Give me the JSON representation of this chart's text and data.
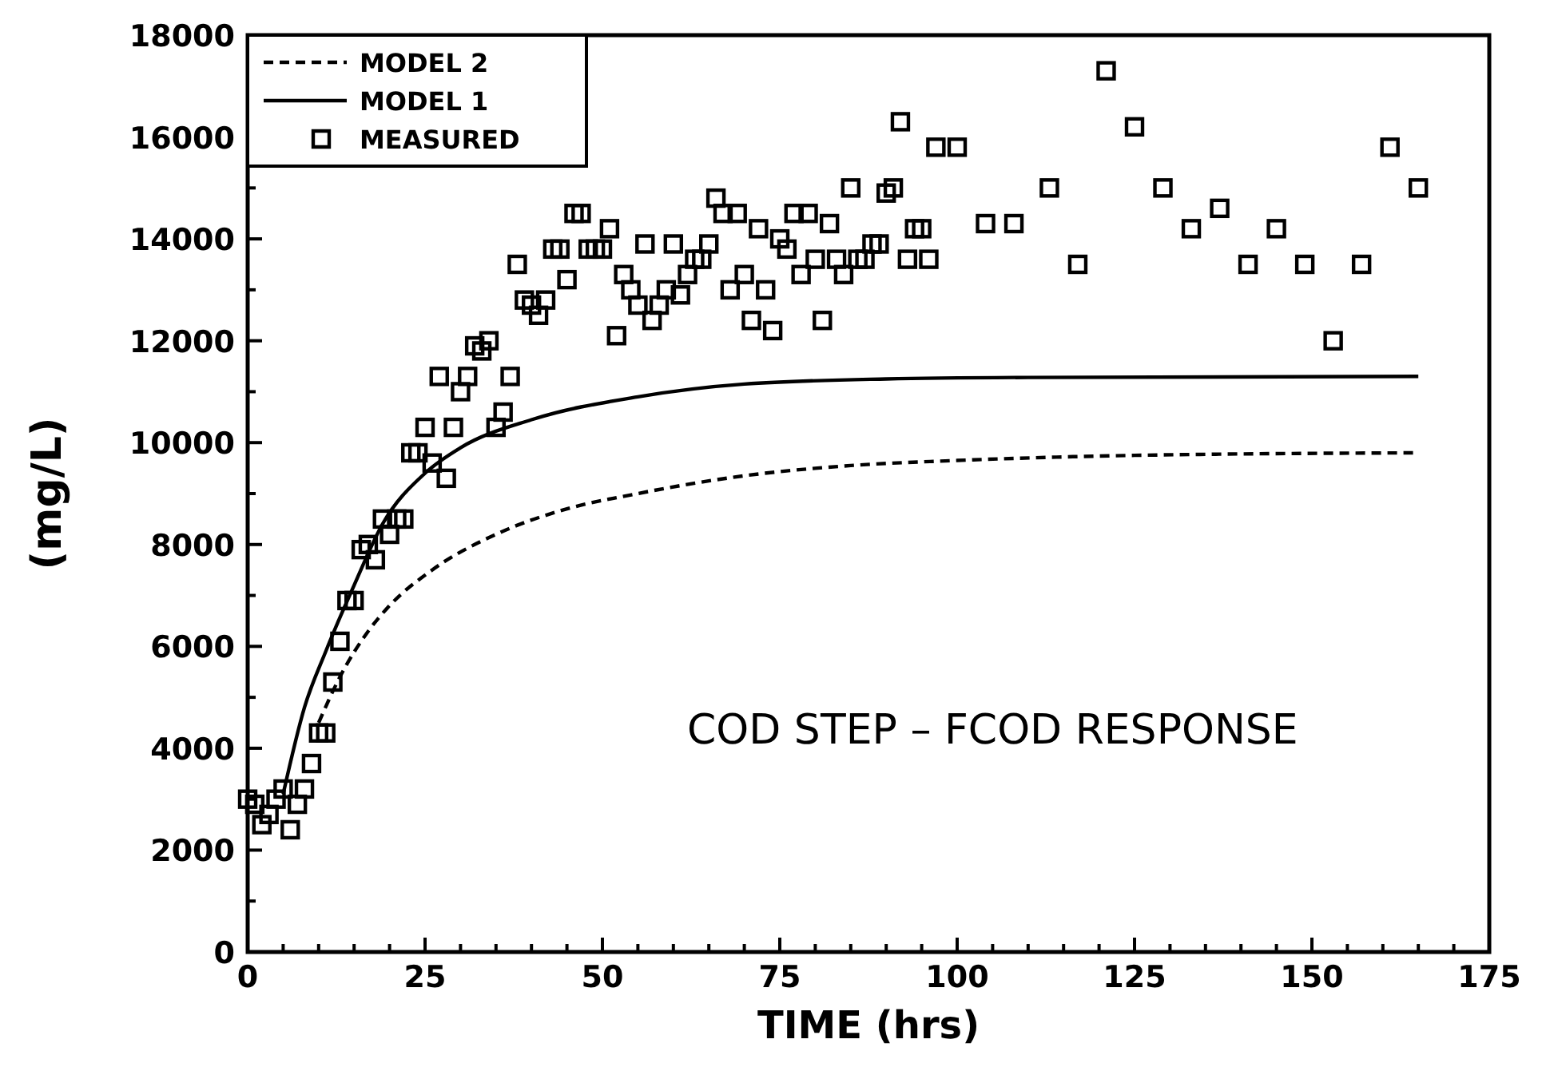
{
  "chart_data": {
    "type": "scatter",
    "xlabel": "TIME (hrs)",
    "ylabel": "(mg/L)",
    "annotations": [
      "COD STEP – FCOD RESPONSE"
    ],
    "xlim": [
      0,
      175
    ],
    "xticks": [
      0,
      {
        "value": 5,
        "label": null
      },
      {
        "value": 10,
        "label": null
      },
      {
        "value": 15,
        "label": null
      },
      {
        "value": 20,
        "label": null
      },
      25,
      {
        "value": 30,
        "label": null
      },
      {
        "value": 35,
        "label": null
      },
      {
        "value": 40,
        "label": null
      },
      {
        "value": 45,
        "label": null
      },
      50,
      {
        "value": 55,
        "label": null
      },
      {
        "value": 60,
        "label": null
      },
      {
        "value": 65,
        "label": null
      },
      {
        "value": 70,
        "label": null
      },
      75,
      {
        "value": 80,
        "label": null
      },
      {
        "value": 85,
        "label": null
      },
      {
        "value": 90,
        "label": null
      },
      {
        "value": 95,
        "label": null
      },
      100,
      {
        "value": 105,
        "label": null
      },
      {
        "value": 110,
        "label": null
      },
      {
        "value": 115,
        "label": null
      },
      {
        "value": 120,
        "label": null
      },
      125,
      {
        "value": 130,
        "label": null
      },
      {
        "value": 135,
        "label": null
      },
      {
        "value": 140,
        "label": null
      },
      {
        "value": 145,
        "label": null
      },
      150,
      {
        "value": 155,
        "label": null
      },
      {
        "value": 160,
        "label": null
      },
      {
        "value": 165,
        "label": null
      },
      {
        "value": 170,
        "label": null
      },
      175
    ],
    "ylim": [
      0,
      18000
    ],
    "yticks": [
      0,
      {
        "value": 1000,
        "label": null
      },
      2000,
      {
        "value": 3000,
        "label": null
      },
      4000,
      {
        "value": 5000,
        "label": null
      },
      6000,
      {
        "value": 7000,
        "label": null
      },
      8000,
      {
        "value": 9000,
        "label": null
      },
      10000,
      {
        "value": 11000,
        "label": null
      },
      12000,
      {
        "value": 13000,
        "label": null
      },
      14000,
      {
        "value": 15000,
        "label": null
      },
      16000,
      {
        "value": 17000,
        "label": null
      },
      18000
    ],
    "grid": false,
    "legend": "top left",
    "series": [
      {
        "name": "MODEL 2",
        "type": "line",
        "line_style": "dashed",
        "color": "#000000",
        "x": [
          10,
          13,
          17,
          20,
          26,
          35,
          45,
          55,
          70,
          85,
          100,
          125,
          165
        ],
        "values": [
          4500,
          5400,
          6300,
          6800,
          7500,
          8200,
          8700,
          9000,
          9350,
          9550,
          9650,
          9750,
          9800
        ]
      },
      {
        "name": "MODEL 1",
        "type": "line",
        "line_style": "solid",
        "color": "#000000",
        "x": [
          5,
          8,
          11,
          15,
          19,
          25,
          30,
          40,
          55,
          70,
          90,
          110,
          165
        ],
        "values": [
          3100,
          4800,
          5900,
          7200,
          8400,
          9400,
          9900,
          10450,
          10900,
          11150,
          11250,
          11280,
          11300
        ]
      },
      {
        "name": "MEASURED",
        "marker": "square",
        "color": "#000000",
        "x": [
          0,
          1,
          2,
          3,
          4,
          5,
          6,
          7,
          8,
          9,
          10,
          11,
          12,
          13,
          14,
          15,
          16,
          17,
          18,
          19,
          20,
          21,
          22,
          23,
          24,
          25,
          26,
          27,
          28,
          29,
          30,
          31,
          32,
          33,
          34,
          35,
          36,
          37,
          38,
          39,
          40,
          41,
          42,
          43,
          44,
          45,
          46,
          47,
          48,
          49,
          50,
          51,
          52,
          53,
          54,
          55,
          56,
          57,
          58,
          59,
          60,
          61,
          62,
          63,
          64,
          65,
          66,
          67,
          68,
          69,
          70,
          71,
          72,
          73,
          74,
          75,
          76,
          77,
          78,
          79,
          80,
          81,
          82,
          83,
          84,
          85,
          86,
          87,
          88,
          89,
          90,
          91,
          92,
          93,
          94,
          95,
          96,
          97,
          100,
          104,
          108,
          113,
          117,
          121,
          125,
          129,
          133,
          137,
          141,
          145,
          149,
          153,
          157,
          161,
          165
        ],
        "values": [
          3000,
          2900,
          2500,
          2700,
          3000,
          3200,
          2400,
          2900,
          3200,
          3700,
          4300,
          4300,
          5300,
          6100,
          6900,
          6900,
          7900,
          8000,
          7700,
          8500,
          8200,
          8500,
          8500,
          9800,
          9800,
          10300,
          9600,
          11300,
          9300,
          10300,
          11000,
          11300,
          11900,
          11800,
          12000,
          10300,
          10600,
          11300,
          13500,
          12800,
          12700,
          12500,
          12800,
          13800,
          13800,
          13200,
          14500,
          14500,
          13800,
          13800,
          13800,
          14200,
          12100,
          13300,
          13000,
          12700,
          13900,
          12400,
          12700,
          13000,
          13900,
          12900,
          13300,
          13600,
          13600,
          13900,
          14800,
          14500,
          13000,
          14500,
          13300,
          12400,
          14200,
          13000,
          12200,
          14000,
          13800,
          14500,
          13300,
          14500,
          13600,
          12400,
          14300,
          13600,
          13300,
          15000,
          13600,
          13600,
          13900,
          13900,
          14900,
          15000,
          16300,
          13600,
          14200,
          14200,
          13600,
          15800,
          15800,
          14300,
          14300,
          15000,
          13500,
          17300,
          16200,
          15000,
          14200,
          14600,
          13500,
          14200,
          13500,
          12000,
          13500,
          15800,
          15000
        ]
      }
    ]
  }
}
